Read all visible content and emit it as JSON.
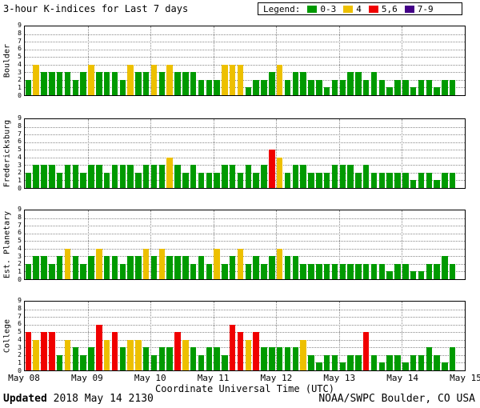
{
  "title": "3-hour K-indices for Last 7 days",
  "legend": {
    "label": "Legend:",
    "items": [
      {
        "label": "0-3",
        "color": "#009a00"
      },
      {
        "label": "4",
        "color": "#edc000"
      },
      {
        "label": "5,6",
        "color": "#f00000"
      },
      {
        "label": "7-9",
        "color": "#440088"
      }
    ]
  },
  "footer": {
    "updated_label": "Updated",
    "updated_value": "2018 May 14 2130",
    "credit": "NOAA/SWPC Boulder, CO USA"
  },
  "chart_data": {
    "type": "bar",
    "title": "3-hour K-indices for Last 7 days",
    "xlabel": "Coordinate Universal Time (UTC)",
    "ylim": [
      0,
      9
    ],
    "y_ticks": [
      0,
      1,
      2,
      3,
      4,
      5,
      6,
      7,
      8,
      9
    ],
    "x_ticks": [
      "May 08",
      "May 09",
      "May 10",
      "May 11",
      "May 12",
      "May 13",
      "May 14",
      "May 15"
    ],
    "bars_per_day": 8,
    "grid": true,
    "legend_position": "top-right",
    "color_rules": [
      {
        "max": 3,
        "color": "#009a00",
        "label": "0-3"
      },
      {
        "max": 4,
        "color": "#edc000",
        "label": "4"
      },
      {
        "max": 6,
        "color": "#f00000",
        "label": "5,6"
      },
      {
        "max": 9,
        "color": "#440088",
        "label": "7-9"
      }
    ],
    "series": [
      {
        "name": "Boulder",
        "values": [
          2,
          4,
          3,
          3,
          3,
          3,
          2,
          3,
          4,
          3,
          3,
          3,
          2,
          4,
          3,
          3,
          4,
          3,
          4,
          3,
          3,
          3,
          2,
          2,
          2,
          4,
          4,
          4,
          1,
          2,
          2,
          3,
          4,
          2,
          3,
          3,
          2,
          2,
          1,
          2,
          2,
          3,
          3,
          2,
          3,
          2,
          1,
          2,
          2,
          1,
          2,
          2,
          1,
          2,
          2
        ]
      },
      {
        "name": "Fredericksburg",
        "values": [
          2,
          3,
          3,
          3,
          2,
          3,
          3,
          2,
          3,
          3,
          2,
          3,
          3,
          3,
          2,
          3,
          3,
          3,
          4,
          3,
          2,
          3,
          2,
          2,
          2,
          3,
          3,
          2,
          3,
          2,
          3,
          5,
          4,
          2,
          3,
          3,
          2,
          2,
          2,
          3,
          3,
          3,
          2,
          3,
          2,
          2,
          2,
          2,
          2,
          1,
          2,
          2,
          1,
          2,
          2
        ]
      },
      {
        "name": "Est. Planetary",
        "values": [
          2,
          3,
          3,
          2,
          3,
          4,
          3,
          2,
          3,
          4,
          3,
          3,
          2,
          3,
          3,
          4,
          3,
          4,
          3,
          3,
          3,
          2,
          3,
          2,
          4,
          2,
          3,
          4,
          2,
          3,
          2,
          3,
          4,
          3,
          3,
          2,
          2,
          2,
          2,
          2,
          2,
          2,
          2,
          2,
          2,
          2,
          1,
          2,
          2,
          1,
          1,
          2,
          2,
          3,
          2
        ]
      },
      {
        "name": "College",
        "values": [
          5,
          4,
          5,
          5,
          2,
          4,
          3,
          2,
          3,
          6,
          4,
          5,
          3,
          4,
          4,
          3,
          2,
          3,
          3,
          5,
          4,
          3,
          2,
          3,
          3,
          2,
          6,
          5,
          4,
          5,
          3,
          3,
          3,
          3,
          3,
          4,
          2,
          1,
          2,
          2,
          1,
          2,
          2,
          5,
          2,
          1,
          2,
          2,
          1,
          2,
          2,
          3,
          2,
          1,
          3
        ]
      }
    ]
  }
}
